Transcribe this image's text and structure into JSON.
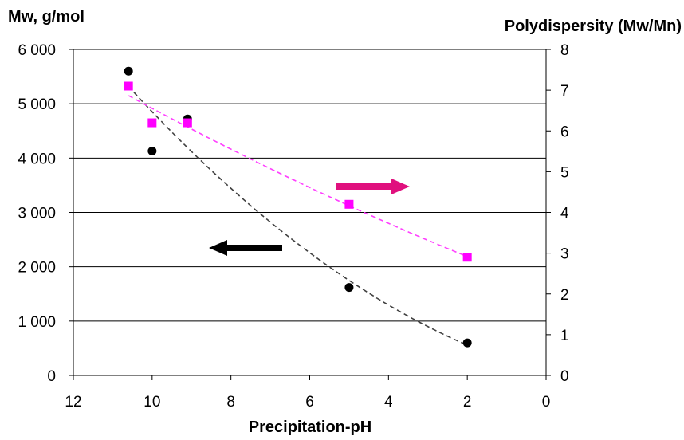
{
  "chart_data": {
    "type": "scatter",
    "title": "",
    "xlabel": "Precipitation-pH",
    "ylabel": "Mw, g/mol",
    "y2label": "Polydispersity (Mw/Mn)",
    "xlim": [
      12,
      0
    ],
    "ylim": [
      0,
      6000
    ],
    "y2lim": [
      0,
      8
    ],
    "x_ticks": [
      "12",
      "10",
      "8",
      "6",
      "4",
      "2",
      "0"
    ],
    "y_ticks": [
      "0",
      "1 000",
      "2 000",
      "3 000",
      "4 000",
      "5 000",
      "6 000"
    ],
    "y2_ticks": [
      "0",
      "1",
      "2",
      "3",
      "4",
      "5",
      "6",
      "7",
      "8"
    ],
    "grid": "horizontal",
    "series": [
      {
        "axis": "left",
        "marker": "circle",
        "color": "#000000",
        "trend_color": "#404040",
        "x": [
          10.6,
          10.0,
          9.1,
          5.0,
          2.0
        ],
        "y": [
          5600,
          4130,
          4720,
          1620,
          600
        ]
      },
      {
        "axis": "right",
        "marker": "square",
        "color": "#ff00ff",
        "trend_color": "#ff40ff",
        "x": [
          10.6,
          10.0,
          9.1,
          5.0,
          2.0
        ],
        "y": [
          7.1,
          6.2,
          6.2,
          4.2,
          2.9
        ]
      }
    ],
    "annotations": [
      {
        "type": "arrow",
        "direction": "left",
        "color": "#000000",
        "refers_to": "Mw, g/mol"
      },
      {
        "type": "arrow",
        "direction": "right",
        "color": "#e0107e",
        "refers_to": "Polydispersity (Mw/Mn)"
      }
    ]
  }
}
